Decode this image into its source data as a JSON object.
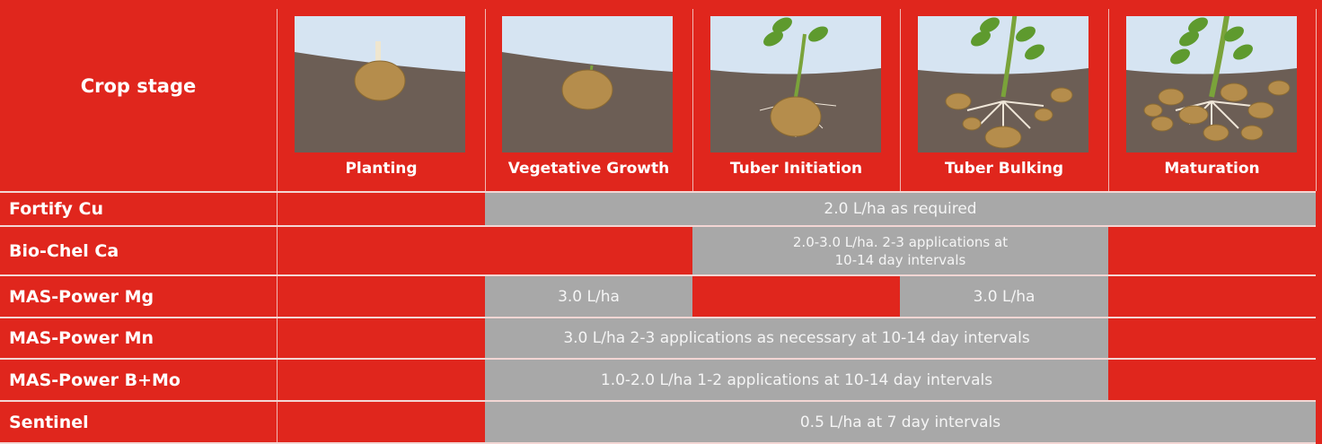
{
  "header": {
    "title": "Crop stage",
    "stages": [
      "Planting",
      "Vegetative Growth",
      "Tuber Initiation",
      "Tuber Bulking",
      "Maturation"
    ]
  },
  "rows": [
    {
      "product": "Fortify Cu",
      "applications": [
        "2.0 L/ha as required"
      ]
    },
    {
      "product": "Bio-Chel Ca",
      "applications": [
        [
          "2.0-3.0 L/ha. 2-3 applications at",
          "10-14 day intervals"
        ]
      ]
    },
    {
      "product": "MAS-Power Mg",
      "applications": [
        "3.0 L/ha",
        "3.0 L/ha"
      ]
    },
    {
      "product": "MAS-Power Mn",
      "applications": [
        "3.0 L/ha 2-3 applications as necessary at 10-14 day intervals"
      ]
    },
    {
      "product": "MAS-Power B+Mo",
      "applications": [
        "1.0-2.0 L/ha 1-2 applications at 10-14 day intervals"
      ]
    },
    {
      "product": "Sentinel",
      "applications": [
        "0.5 L/ha at 7 day intervals"
      ]
    }
  ]
}
